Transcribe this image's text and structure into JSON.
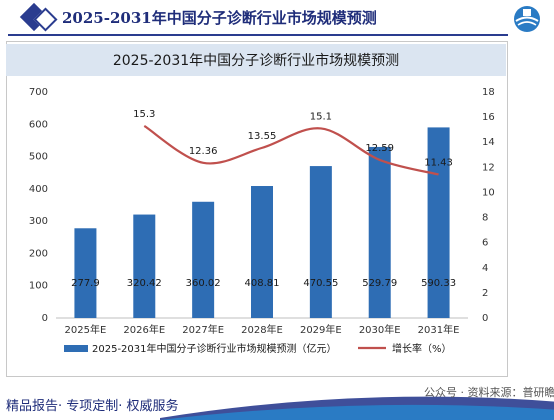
{
  "header": {
    "title": "2025-2031年中国分子诊断行业市场规模预测"
  },
  "footer": {
    "tagline": "精品报告· 专项定制· 权威服务",
    "watermark": "公众号 · 资料来源：普研瞻"
  },
  "colors": {
    "bar": "#2e6db4",
    "line": "#c0504d",
    "title_band": "#dbe5f1",
    "brand": "#1f2d7a"
  },
  "chart_data": {
    "type": "bar",
    "title": "2025-2031年中国分子诊断行业市场规模预测",
    "categories": [
      "2025年E",
      "2026年E",
      "2027年E",
      "2028年E",
      "2029年E",
      "2030年E",
      "2031年E"
    ],
    "series": [
      {
        "name": "2025-2031年中国分子诊断行业市场规模预测（亿元）",
        "type": "bar",
        "axis": "left",
        "values": [
          277.9,
          320.42,
          360.02,
          408.81,
          470.55,
          529.79,
          590.33
        ],
        "labels": [
          "277.9",
          "320.42",
          "360.02",
          "408.81",
          "470.55",
          "529.79",
          "590.33"
        ]
      },
      {
        "name": "增长率（%）",
        "type": "line",
        "axis": "right",
        "values": [
          null,
          15.3,
          12.36,
          13.55,
          15.1,
          12.59,
          11.43
        ],
        "labels": [
          "",
          "15.3",
          "12.36",
          "13.55",
          "15.1",
          "12.59",
          "11.43"
        ]
      }
    ],
    "y_left": {
      "min": 0,
      "max": 700,
      "ticks": [
        "0",
        "100",
        "200",
        "300",
        "400",
        "500",
        "600",
        "700"
      ]
    },
    "y_right": {
      "min": 0,
      "max": 18,
      "ticks": [
        "0",
        "2",
        "4",
        "6",
        "8",
        "10",
        "12",
        "14",
        "16",
        "18"
      ]
    },
    "grid": false,
    "legend_position": "bottom"
  }
}
